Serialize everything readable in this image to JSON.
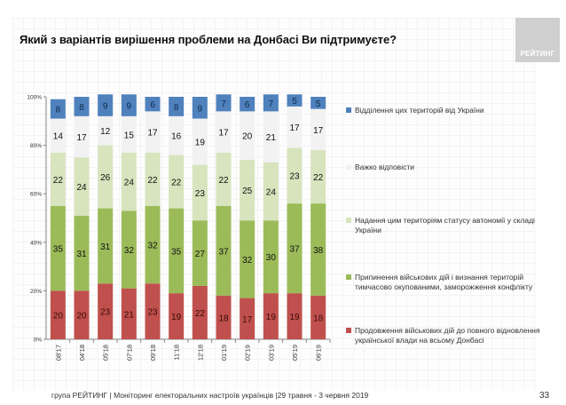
{
  "title": "Який з варіантів вирішення проблеми на Донбасі Ви підтримуєте?",
  "logo_text": "РЕЙТИНГ",
  "footer": "група РЕЙТИНГ | Моніторинг електоральних настроїв українців  |29 травня - 3 червня 2019",
  "page_number": "33",
  "chart_data": {
    "type": "bar",
    "stacked": true,
    "title": "Який з варіантів вирішення проблеми на Донбасі Ви підтримуєте?",
    "xlabel": "",
    "ylabel": "",
    "ylim": [
      0,
      100
    ],
    "yticks": [
      "0%",
      "20%",
      "40%",
      "60%",
      "80%",
      "100%"
    ],
    "grid": false,
    "legend_position": "right",
    "categories": [
      "08'17",
      "04'18",
      "05'18",
      "07'18",
      "09'18",
      "11'18",
      "12'18",
      "01'19",
      "02'19",
      "03'19",
      "05'19",
      "06'19"
    ],
    "series": [
      {
        "name": "Продовження військових дій до повного відновлення української влади на всьому Донбасі",
        "color": "#c0504d",
        "values": [
          20,
          20,
          23,
          21,
          23,
          19,
          22,
          18,
          17,
          19,
          19,
          18
        ]
      },
      {
        "name": "Припинення військових дій і визнання територій тимчасово окупованими, заморожження конфлікту",
        "color": "#9bbb59",
        "values": [
          35,
          31,
          31,
          32,
          32,
          35,
          27,
          37,
          32,
          30,
          37,
          38
        ]
      },
      {
        "name": "Надання цим територіям статусу автономії у складі України",
        "color": "#d7e4bd",
        "values": [
          22,
          24,
          26,
          24,
          22,
          22,
          23,
          22,
          25,
          24,
          23,
          22
        ]
      },
      {
        "name": "Важко відповісти",
        "color": "#f2f2f2",
        "values": [
          14,
          17,
          12,
          15,
          17,
          16,
          19,
          17,
          20,
          21,
          17,
          17
        ]
      },
      {
        "name": "Відділення цих територій від України",
        "color": "#4f81bd",
        "values": [
          8,
          8,
          9,
          9,
          6,
          8,
          9,
          7,
          6,
          7,
          5,
          5
        ]
      }
    ]
  },
  "legend": [
    {
      "label": "Відділення цих територій від України",
      "color": "#4f81bd"
    },
    {
      "label": "Важко відповісти",
      "color": "#f2f2f2"
    },
    {
      "label": "Надання цим територіям статусу автономії у складі України",
      "color": "#d7e4bd"
    },
    {
      "label": "Припинення військових дій і визнання територій тимчасово окупованими, заморожження конфлікту",
      "color": "#9bbb59"
    },
    {
      "label": "Продовження військових дій до повного відновлення української влади на всьому Донбасі",
      "color": "#c0504d"
    }
  ]
}
